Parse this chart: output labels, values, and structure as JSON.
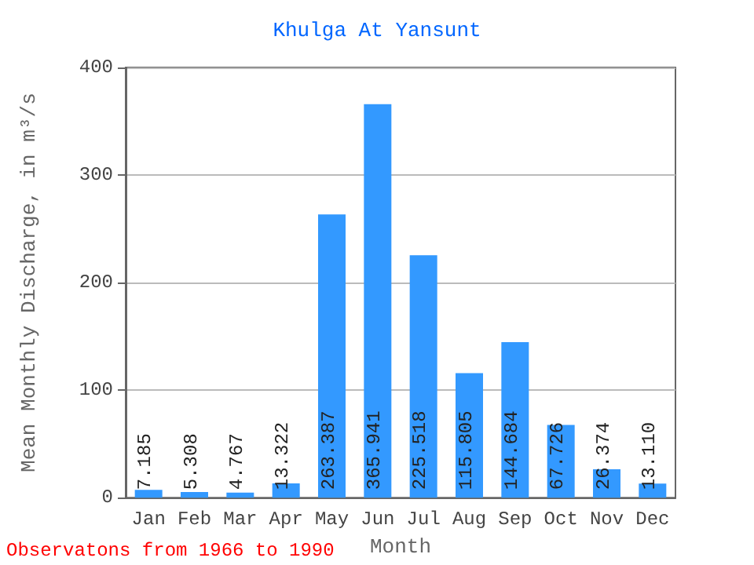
{
  "chart_data": {
    "type": "bar",
    "title": "Khulga At Yansunt",
    "xlabel": "Month",
    "ylabel": "Mean Monthly Discharge, in m³/s",
    "categories": [
      "Jan",
      "Feb",
      "Mar",
      "Apr",
      "May",
      "Jun",
      "Jul",
      "Aug",
      "Sep",
      "Oct",
      "Nov",
      "Dec"
    ],
    "values": [
      7.185,
      5.308,
      4.767,
      13.322,
      263.387,
      365.941,
      225.518,
      115.805,
      144.684,
      67.726,
      26.374,
      13.11
    ],
    "value_labels": [
      "7.185",
      "5.308",
      "4.767",
      "13.322",
      "263.387",
      "365.941",
      "225.518",
      "115.805",
      "144.684",
      "67.726",
      "26.374",
      "13.110"
    ],
    "color": "#3399ff",
    "ylim": [
      0,
      400
    ],
    "yticks": [
      0,
      100,
      200,
      300,
      400
    ],
    "grid": "y",
    "annotations": [
      "Observatons from 1966 to 1990"
    ]
  }
}
